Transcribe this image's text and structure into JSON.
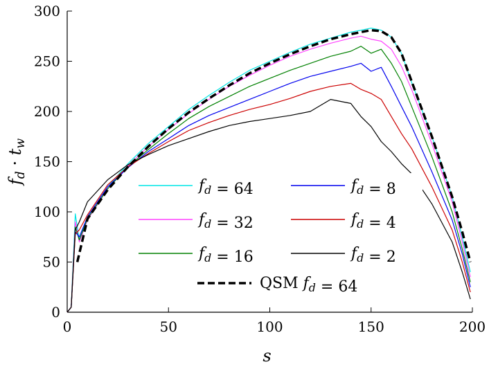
{
  "chart_data": {
    "type": "line",
    "xlabel": "s",
    "ylabel": "f_d · t_w",
    "xlim": [
      0,
      200
    ],
    "ylim": [
      0,
      300
    ],
    "xticks": [
      0,
      50,
      100,
      150,
      200
    ],
    "yticks": [
      0,
      50,
      100,
      150,
      200,
      250,
      300
    ],
    "grid": false,
    "legend_position": "lower-center",
    "series": [
      {
        "name": "f_d = 64",
        "label": "f_d = 64",
        "color": "#00e5e5",
        "style": "solid",
        "x": [
          0,
          2,
          4,
          6,
          10,
          20,
          30,
          40,
          50,
          60,
          70,
          80,
          90,
          100,
          110,
          120,
          130,
          140,
          145,
          150,
          155,
          160,
          165,
          170,
          180,
          190,
          195,
          199
        ],
        "y": [
          0,
          5,
          98,
          72,
          95,
          125,
          148,
          168,
          185,
          202,
          216,
          229,
          241,
          250,
          259,
          267,
          273,
          279,
          281,
          283,
          281,
          274,
          258,
          229,
          175,
          115,
          75,
          40
        ]
      },
      {
        "name": "f_d = 32",
        "label": "f_d = 32",
        "color": "#ff44ff",
        "style": "solid",
        "x": [
          0,
          2,
          4,
          6,
          10,
          20,
          30,
          40,
          50,
          60,
          70,
          80,
          90,
          100,
          110,
          120,
          130,
          140,
          145,
          150,
          155,
          160,
          165,
          170,
          180,
          190,
          195,
          199
        ],
        "y": [
          0,
          5,
          90,
          70,
          92,
          123,
          146,
          165,
          182,
          198,
          212,
          225,
          236,
          246,
          255,
          262,
          268,
          273,
          275,
          272,
          270,
          262,
          245,
          222,
          168,
          110,
          70,
          35
        ]
      },
      {
        "name": "f_d = 16",
        "label": "f_d = 16",
        "color": "#008000",
        "style": "solid",
        "x": [
          0,
          2,
          4,
          6,
          10,
          20,
          30,
          40,
          50,
          60,
          70,
          80,
          90,
          100,
          110,
          120,
          130,
          140,
          145,
          150,
          155,
          160,
          165,
          170,
          180,
          190,
          195,
          199
        ],
        "y": [
          0,
          5,
          85,
          72,
          93,
          123,
          145,
          162,
          178,
          193,
          205,
          215,
          225,
          233,
          241,
          248,
          255,
          260,
          265,
          258,
          262,
          248,
          230,
          205,
          155,
          100,
          63,
          30
        ]
      },
      {
        "name": "f_d = 8",
        "label": "f_d = 8",
        "color": "#0000ee",
        "style": "solid",
        "x": [
          0,
          2,
          4,
          6,
          10,
          20,
          30,
          40,
          50,
          60,
          70,
          80,
          90,
          100,
          110,
          120,
          130,
          140,
          145,
          150,
          155,
          160,
          165,
          170,
          180,
          190,
          195,
          199
        ],
        "y": [
          0,
          5,
          80,
          75,
          95,
          125,
          144,
          160,
          173,
          186,
          196,
          204,
          212,
          220,
          228,
          235,
          240,
          245,
          248,
          240,
          244,
          225,
          205,
          185,
          140,
          92,
          58,
          25
        ]
      },
      {
        "name": "f_d = 4",
        "label": "f_d = 4",
        "color": "#cc0000",
        "style": "solid",
        "x": [
          0,
          2,
          4,
          6,
          10,
          20,
          30,
          40,
          50,
          60,
          70,
          80,
          90,
          100,
          110,
          120,
          130,
          140,
          145,
          150,
          155,
          160,
          165,
          170,
          180,
          190,
          195,
          199
        ],
        "y": [
          0,
          5,
          78,
          82,
          97,
          127,
          145,
          158,
          170,
          181,
          189,
          196,
          202,
          207,
          213,
          220,
          225,
          228,
          222,
          218,
          212,
          195,
          178,
          163,
          125,
          82,
          50,
          20
        ]
      },
      {
        "name": "f_d = 2",
        "label": "f_d = 2",
        "color": "#000000",
        "style": "solid",
        "x": [
          0,
          2,
          4,
          6,
          10,
          20,
          30,
          40,
          50,
          60,
          70,
          80,
          90,
          100,
          110,
          120,
          130,
          140,
          145,
          150,
          155,
          160,
          165,
          170,
          180,
          190,
          195,
          199
        ],
        "y": [
          0,
          5,
          82,
          90,
          110,
          132,
          147,
          157,
          166,
          173,
          180,
          186,
          190,
          193,
          196,
          200,
          212,
          208,
          195,
          185,
          170,
          160,
          148,
          138,
          108,
          70,
          40,
          13
        ]
      },
      {
        "name": "QSM f_d = 64",
        "label": "QSM f_d = 64",
        "color": "#000000",
        "style": "dashed",
        "x": [
          5,
          10,
          20,
          30,
          40,
          50,
          60,
          70,
          80,
          90,
          100,
          110,
          120,
          130,
          140,
          145,
          150,
          155,
          160,
          165,
          170,
          180,
          190,
          195,
          199
        ],
        "y": [
          50,
          93,
          122,
          145,
          165,
          183,
          199,
          213,
          226,
          238,
          248,
          257,
          265,
          272,
          277,
          279,
          281,
          280,
          274,
          258,
          230,
          175,
          115,
          80,
          50
        ]
      }
    ]
  }
}
